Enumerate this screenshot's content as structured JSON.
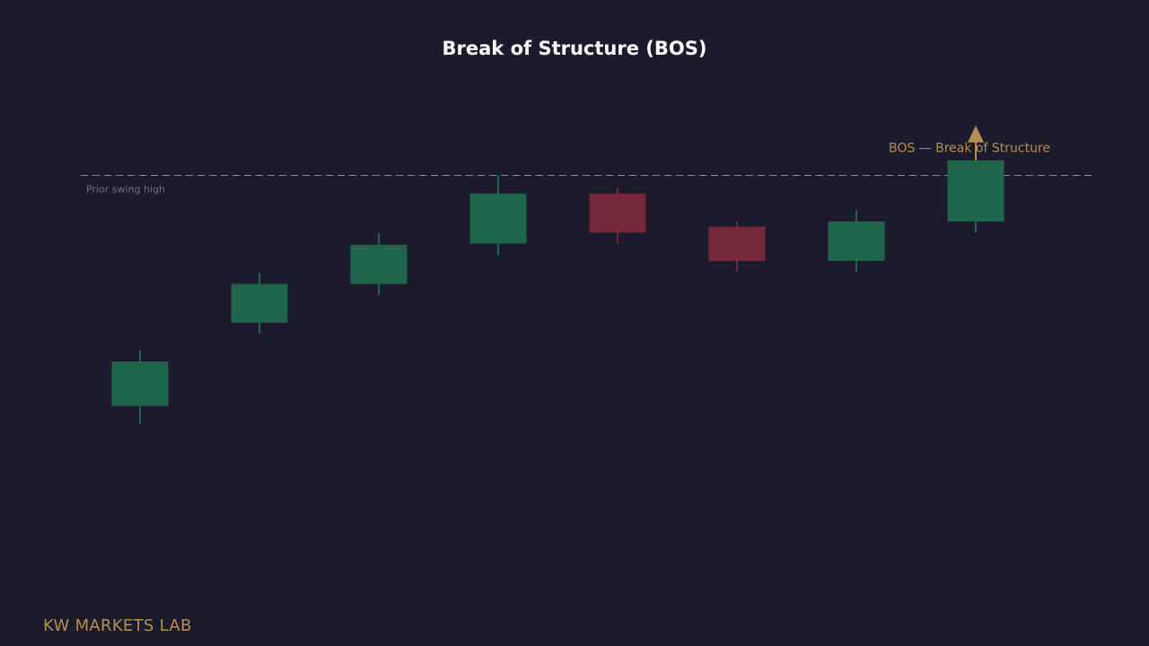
{
  "chart_data": {
    "type": "candlestick",
    "title": "Break of Structure (BOS)",
    "xlabel": "",
    "ylabel": "",
    "grid": false,
    "ylim": [
      0,
      100
    ],
    "candles": [
      {
        "open": 23.2,
        "close": 35.0,
        "high": 38.0,
        "low": 18.5,
        "direction": "bull"
      },
      {
        "open": 45.3,
        "close": 55.6,
        "high": 58.6,
        "low": 42.4,
        "direction": "bull"
      },
      {
        "open": 55.6,
        "close": 66.0,
        "high": 69.0,
        "low": 52.7,
        "direction": "bull"
      },
      {
        "open": 66.3,
        "close": 79.6,
        "high": 84.4,
        "low": 63.3,
        "direction": "bull"
      },
      {
        "open": 79.6,
        "close": 69.2,
        "high": 81.0,
        "low": 66.3,
        "direction": "bear"
      },
      {
        "open": 70.8,
        "close": 61.7,
        "high": 72.3,
        "low": 58.9,
        "direction": "bear"
      },
      {
        "open": 61.7,
        "close": 72.2,
        "high": 75.2,
        "low": 58.9,
        "direction": "bull"
      },
      {
        "open": 72.2,
        "close": 88.4,
        "high": 91.4,
        "low": 69.2,
        "direction": "bull"
      }
    ],
    "levels": [
      {
        "label": "Prior swing high",
        "value": 84.4
      }
    ],
    "annotations": [
      {
        "text": "BOS — Break of Structure",
        "candle_index": 7,
        "marker": "arrow-up"
      }
    ]
  },
  "colors": {
    "background": "#1b1b2d",
    "bull": "#1f654b",
    "bear": "#75283a",
    "level_line": "#9a9aa8",
    "level_label": "#6f7082",
    "accent": "#b48e4f",
    "title": "#ffffff"
  },
  "brand": {
    "label": "KW MARKETS LAB"
  }
}
